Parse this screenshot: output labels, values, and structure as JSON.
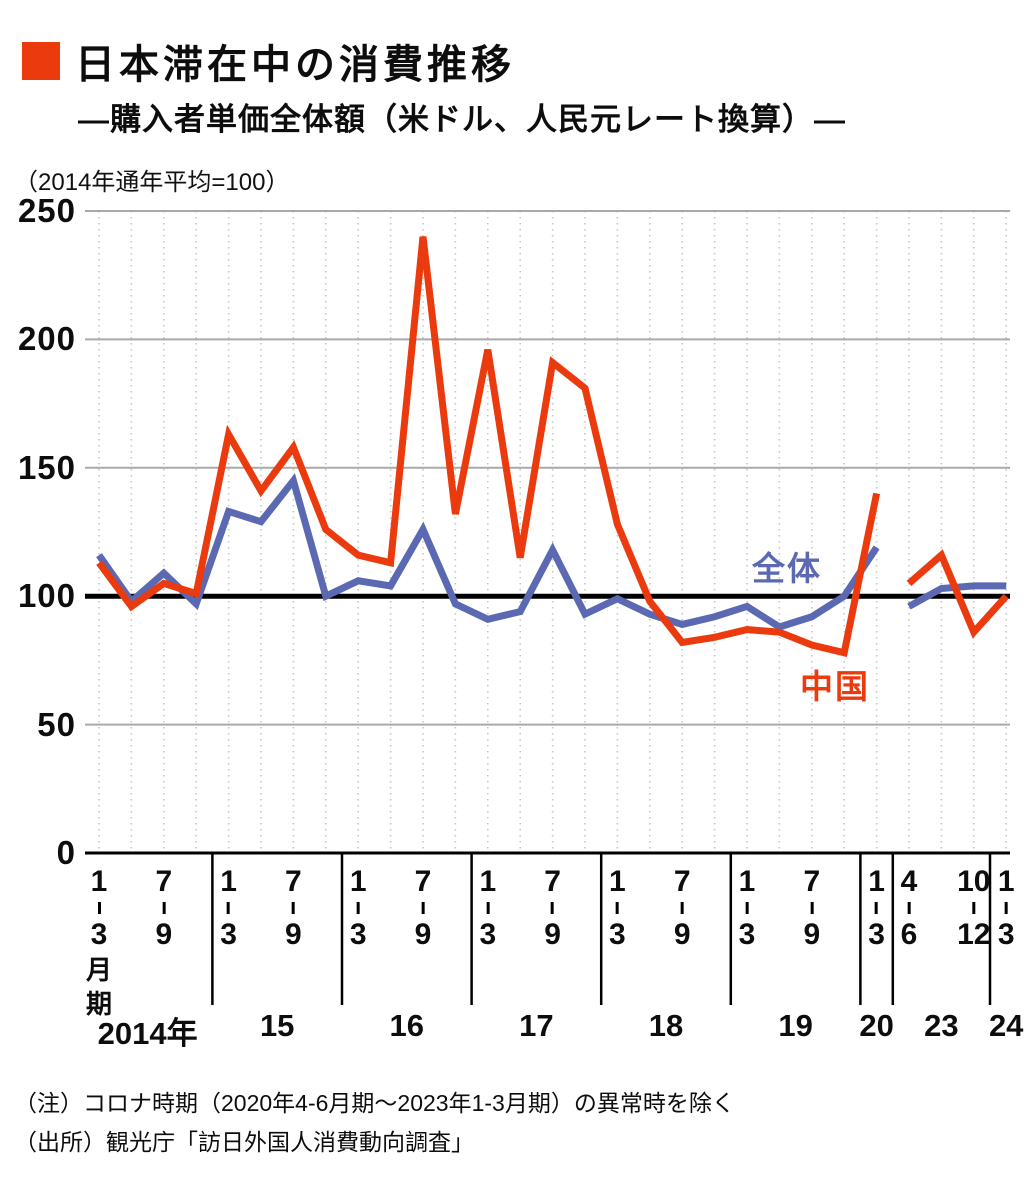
{
  "header": {
    "title": "日本滞在中の消費推移",
    "subtitle": "―購入者単価全体額（米ドル、人民元レート換算）―",
    "unit_note": "（2014年通年平均=100）"
  },
  "colors": {
    "china_red": "#eb3b0e",
    "overall_blue": "#5a69b2",
    "baseline_black": "#000000",
    "gridline_gray": "#a9a9a9",
    "dotted_gray": "#c6c6c6"
  },
  "chart_data": {
    "type": "line",
    "title": "日本滞在中の消費推移",
    "subtitle": "購入者単価全体額（米ドル、人民元レート換算）",
    "index_base_note": "2014年通年平均=100",
    "ylim": [
      0,
      250
    ],
    "yticks": [
      0,
      50,
      100,
      150,
      200,
      250
    ],
    "baseline_value": 100,
    "grid": "horizontal solid, vertical dotted per quarter",
    "legend_position": "inline labels on chart",
    "break_after_index": 24,
    "x_categories": [
      "2014年1-3月期",
      "2014年4-6月期",
      "2014年7-9月期",
      "2014年10-12月期",
      "2015年1-3月期",
      "2015年4-6月期",
      "2015年7-9月期",
      "2015年10-12月期",
      "2016年1-3月期",
      "2016年4-6月期",
      "2016年7-9月期",
      "2016年10-12月期",
      "2017年1-3月期",
      "2017年4-6月期",
      "2017年7-9月期",
      "2017年10-12月期",
      "2018年1-3月期",
      "2018年4-6月期",
      "2018年7-9月期",
      "2018年10-12月期",
      "2019年1-3月期",
      "2019年4-6月期",
      "2019年7-9月期",
      "2019年10-12月期",
      "2020年1-3月期",
      "2023年4-6月期",
      "2023年7-9月期",
      "2023年10-12月期",
      "2024年1-3月期"
    ],
    "series": [
      {
        "name": "全体",
        "color": "#5a69b2",
        "values": [
          116,
          98,
          109,
          97,
          133,
          129,
          145,
          100,
          106,
          104,
          126,
          97,
          91,
          94,
          118,
          93,
          99,
          93,
          89,
          92,
          96,
          88,
          92,
          100,
          119,
          96,
          103,
          104,
          104
        ]
      },
      {
        "name": "中国",
        "color": "#eb3b0e",
        "values": [
          113,
          96,
          105,
          101,
          163,
          141,
          158,
          126,
          116,
          113,
          240,
          132,
          196,
          115,
          191,
          181,
          128,
          98,
          82,
          84,
          87,
          86,
          81,
          78,
          140,
          105,
          116,
          86,
          100
        ]
      }
    ]
  },
  "xaxis": {
    "tick_labels": [
      {
        "index": 0,
        "top": "1",
        "bottom": "3",
        "suffix": [
          "月",
          "期"
        ]
      },
      {
        "index": 2,
        "top": "7",
        "bottom": "9"
      },
      {
        "index": 4,
        "top": "1",
        "bottom": "3"
      },
      {
        "index": 6,
        "top": "7",
        "bottom": "9"
      },
      {
        "index": 8,
        "top": "1",
        "bottom": "3"
      },
      {
        "index": 10,
        "top": "7",
        "bottom": "9"
      },
      {
        "index": 12,
        "top": "1",
        "bottom": "3"
      },
      {
        "index": 14,
        "top": "7",
        "bottom": "9"
      },
      {
        "index": 16,
        "top": "1",
        "bottom": "3"
      },
      {
        "index": 18,
        "top": "7",
        "bottom": "9"
      },
      {
        "index": 20,
        "top": "1",
        "bottom": "3"
      },
      {
        "index": 22,
        "top": "7",
        "bottom": "9"
      },
      {
        "index": 24,
        "top": "1",
        "bottom": "3"
      },
      {
        "index": 25,
        "top": "4",
        "bottom": "6"
      },
      {
        "index": 27,
        "top": "10",
        "bottom": "12"
      },
      {
        "index": 28,
        "top": "1",
        "bottom": "3"
      }
    ],
    "years": [
      {
        "label": "2014年",
        "from": 0,
        "to": 3
      },
      {
        "label": "15",
        "from": 4,
        "to": 7
      },
      {
        "label": "16",
        "from": 8,
        "to": 11
      },
      {
        "label": "17",
        "from": 12,
        "to": 15
      },
      {
        "label": "18",
        "from": 16,
        "to": 19
      },
      {
        "label": "19",
        "from": 20,
        "to": 23
      },
      {
        "label": "20",
        "from": 24,
        "to": 24
      },
      {
        "label": "23",
        "from": 25,
        "to": 27
      },
      {
        "label": "24",
        "from": 28,
        "to": 28
      }
    ]
  },
  "notes": [
    "（注）コロナ時期（2020年4-6月期～2023年1-3月期）の異常時を除く",
    "（出所）観光庁「訪日外国人消費動向調査」"
  ]
}
